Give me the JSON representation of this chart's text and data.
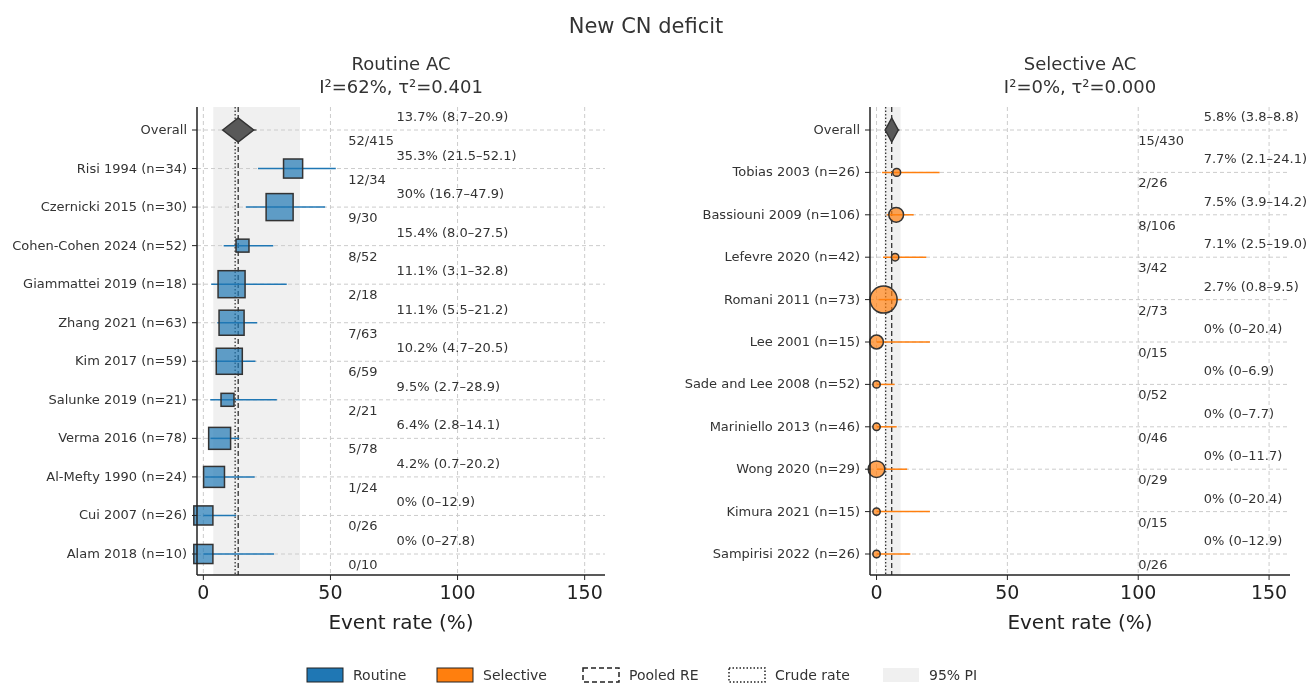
{
  "chart_data": [
    {
      "type": "scatter",
      "orientation": "horizontal",
      "title": "Routine AC",
      "subtitle": "I²=62%, τ²=0.401",
      "xlabel": "Event rate (%)",
      "categories": [
        "Overall",
        "Risi 1994 (n=34)",
        "Czernicki 2015 (n=30)",
        "Cohen-Cohen 2024 (n=52)",
        "Giammattei 2019 (n=18)",
        "Zhang 2021 (n=63)",
        "Kim 2017 (n=59)",
        "Salunke 2019 (n=21)",
        "Verma 2016 (n=78)",
        "Al-Mefty 1990 (n=24)",
        "Cui 2007 (n=26)",
        "Alam 2018 (n=10)"
      ],
      "xlim": [
        -2.5,
        158
      ],
      "xticks": [
        0,
        50,
        100,
        150
      ],
      "grid": true,
      "legend": "bottom",
      "series": [
        {
          "color": "#595959",
          "marker": "diamond",
          "values": [
            13.7,
            null,
            null,
            null,
            null,
            null,
            null,
            null,
            null,
            null,
            null,
            null
          ],
          "errors": [
            [
              8.7,
              20.9
            ],
            null,
            null,
            null,
            null,
            null,
            null,
            null,
            null,
            null,
            null,
            null
          ]
        },
        {
          "name": "Routine",
          "color": "#1f77b4",
          "marker": "square",
          "values": [
            null,
            35.3,
            30,
            15.4,
            11.1,
            11.1,
            10.2,
            9.5,
            6.4,
            4.2,
            0,
            0
          ],
          "errors": [
            null,
            [
              21.5,
              52.1
            ],
            [
              16.7,
              47.9
            ],
            [
              8.0,
              27.5
            ],
            [
              3.1,
              32.8
            ],
            [
              5.5,
              21.2
            ],
            [
              4.7,
              20.5
            ],
            [
              2.7,
              28.9
            ],
            [
              2.8,
              14.1
            ],
            [
              0.7,
              20.2
            ],
            [
              0,
              12.9
            ],
            [
              0,
              27.8
            ]
          ],
          "sizes": [
            null,
            0.5,
            1,
            0.23,
            1,
            0.86,
            0.93,
            0.23,
            0.66,
            0.6,
            0.5,
            0.5
          ]
        }
      ],
      "ref_lines": [
        {
          "axis": "x",
          "value": 13.7,
          "label": "Pooled RE",
          "line_style": "dashed"
        },
        {
          "axis": "x",
          "value": 12.5,
          "label": "Crude rate",
          "line_style": "dotted"
        }
      ],
      "bands": [
        {
          "axis": "x",
          "from": 3.9,
          "to": 38,
          "label": "95% PI",
          "color": "#f0f0f0"
        }
      ],
      "annotations": [
        "13.7% (8.7–20.9)",
        "52/415",
        "35.3% (21.5–52.1)",
        "12/34",
        "30% (16.7–47.9)",
        "9/30",
        "15.4% (8.0–27.5)",
        "8/52",
        "11.1% (3.1–32.8)",
        "2/18",
        "11.1% (5.5–21.2)",
        "7/63",
        "10.2% (4.7–20.5)",
        "6/59",
        "9.5% (2.7–28.9)",
        "2/21",
        "6.4% (2.8–14.1)",
        "5/78",
        "4.2% (0.7–20.2)",
        "1/24",
        "0% (0–12.9)",
        "0/26",
        "0% (0–27.8)",
        "0/10",
        "New CN deficit"
      ]
    },
    {
      "type": "scatter",
      "orientation": "horizontal",
      "title": "Selective AC",
      "subtitle": "I²=0%, τ²=0.000",
      "xlabel": "Event rate (%)",
      "categories": [
        "Overall",
        "Tobias 2003 (n=26)",
        "Bassiouni 2009 (n=106)",
        "Lefevre 2020 (n=42)",
        "Romani 2011 (n=73)",
        "Lee 2001 (n=15)",
        "Sade and Lee 2008 (n=52)",
        "Mariniello 2013 (n=46)",
        "Wong 2020 (n=29)",
        "Kimura 2021 (n=15)",
        "Sampirisi 2022 (n=26)"
      ],
      "xlim": [
        -2.5,
        158
      ],
      "xticks": [
        0,
        50,
        100,
        150
      ],
      "grid": true,
      "legend": "bottom",
      "series": [
        {
          "color": "#595959",
          "marker": "diamond",
          "values": [
            5.8,
            null,
            null,
            null,
            null,
            null,
            null,
            null,
            null,
            null,
            null
          ],
          "errors": [
            [
              3.8,
              8.8
            ],
            null,
            null,
            null,
            null,
            null,
            null,
            null,
            null,
            null,
            null
          ]
        },
        {
          "name": "Selective",
          "color": "#ff7f0e",
          "marker": "circle",
          "values": [
            null,
            7.7,
            7.5,
            7.1,
            2.7,
            0,
            0,
            0,
            0,
            0,
            0
          ],
          "errors": [
            null,
            [
              2.1,
              24.1
            ],
            [
              3.9,
              14.2
            ],
            [
              2.5,
              19.0
            ],
            [
              0.8,
              9.5
            ],
            [
              0,
              20.4
            ],
            [
              0,
              6.9
            ],
            [
              0,
              7.7
            ],
            [
              0,
              11.7
            ],
            [
              0,
              20.4
            ],
            [
              0,
              12.9
            ]
          ],
          "sizes": [
            null,
            0.085,
            0.3,
            0.075,
            1,
            0.26,
            0.075,
            0.075,
            0.38,
            0.075,
            0.075
          ]
        }
      ],
      "ref_lines": [
        {
          "axis": "x",
          "value": 5.8,
          "line_style": "dashed"
        },
        {
          "axis": "x",
          "value": 3.5,
          "line_style": "dotted"
        }
      ],
      "bands": [
        {
          "axis": "x",
          "from": 3,
          "to": 9.2,
          "color": "#f0f0f0"
        }
      ],
      "annotations": [
        "5.8% (3.8–8.8)",
        "15/430",
        "7.7% (2.1–24.1)",
        "2/26",
        "7.5% (3.9–14.2)",
        "8/106",
        "7.1% (2.5–19.0)",
        "3/42",
        "2.7% (0.8–9.5)",
        "2/73",
        "0% (0–20.4)",
        "0/15",
        "0% (0–6.9)",
        "0/52",
        "0% (0–7.7)",
        "0/46",
        "0% (0–11.7)",
        "0/29",
        "0% (0–20.4)",
        "0/15",
        "0% (0–12.9)",
        "0/26"
      ]
    }
  ]
}
